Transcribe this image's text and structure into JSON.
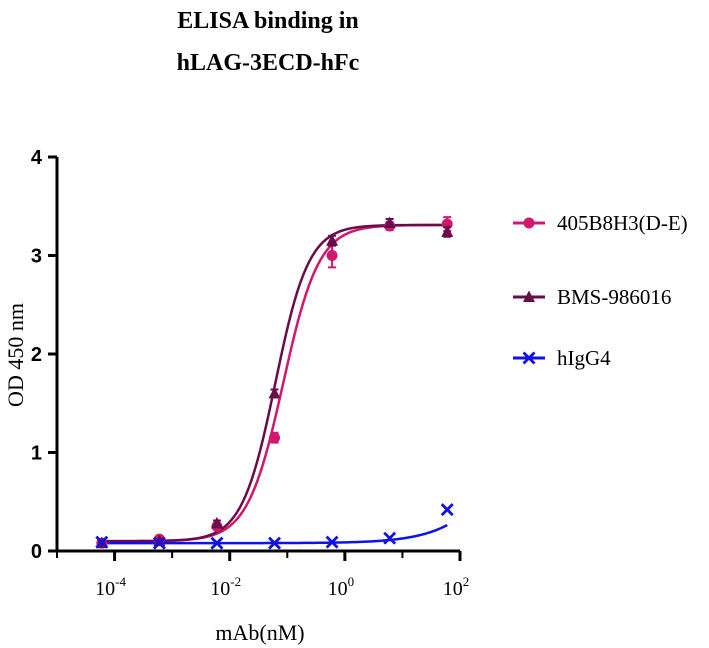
{
  "chart_data": {
    "type": "line",
    "title_lines": [
      "ELISA binding in",
      "hLAG-3ECD-hFc"
    ],
    "xlabel": "mAb(nM)",
    "ylabel": "OD 450 nm",
    "x_scale": "log10",
    "xlim": [
      1e-05,
      100
    ],
    "ylim": [
      0,
      4
    ],
    "y_ticks": [
      0,
      1,
      2,
      3,
      4
    ],
    "x_ticks": [
      {
        "value": 0.0001,
        "base": "10",
        "exp": "-4"
      },
      {
        "value": 0.01,
        "base": "10",
        "exp": "-2"
      },
      {
        "value": 1,
        "base": "10",
        "exp": "0"
      },
      {
        "value": 100,
        "base": "10",
        "exp": "2"
      }
    ],
    "grid": false,
    "legend_position": "right",
    "x": [
      6e-05,
      0.0006,
      0.006,
      0.06,
      0.6,
      6,
      60
    ],
    "series": [
      {
        "name": "405B8H3(D-E)",
        "color": "#d0186e",
        "marker": "circle",
        "values": [
          0.08,
          0.12,
          0.25,
          1.15,
          3.0,
          3.3,
          3.32
        ],
        "errors": [
          0.02,
          0.02,
          0.03,
          0.05,
          0.12,
          0.04,
          0.07
        ],
        "fit": {
          "bottom": 0.1,
          "top": 3.31,
          "ec50": 0.085,
          "hill": 1.4
        }
      },
      {
        "name": "BMS-986016",
        "color": "#6a0b4a",
        "marker": "triangle",
        "values": [
          0.08,
          0.1,
          0.28,
          1.6,
          3.15,
          3.33,
          3.24
        ],
        "errors": [
          0.02,
          0.02,
          0.03,
          0.04,
          0.05,
          0.04,
          0.05
        ],
        "fit": {
          "bottom": 0.1,
          "top": 3.31,
          "ec50": 0.062,
          "hill": 1.5
        }
      },
      {
        "name": "hIgG4",
        "color": "#1010e8",
        "marker": "cross",
        "values": [
          0.09,
          0.08,
          0.08,
          0.08,
          0.09,
          0.13,
          0.42
        ],
        "errors": [
          0,
          0,
          0,
          0,
          0,
          0,
          0
        ],
        "fit": {
          "bottom": 0.08,
          "top": 2.0,
          "ec50": 1000,
          "hill": 0.8
        }
      }
    ]
  }
}
